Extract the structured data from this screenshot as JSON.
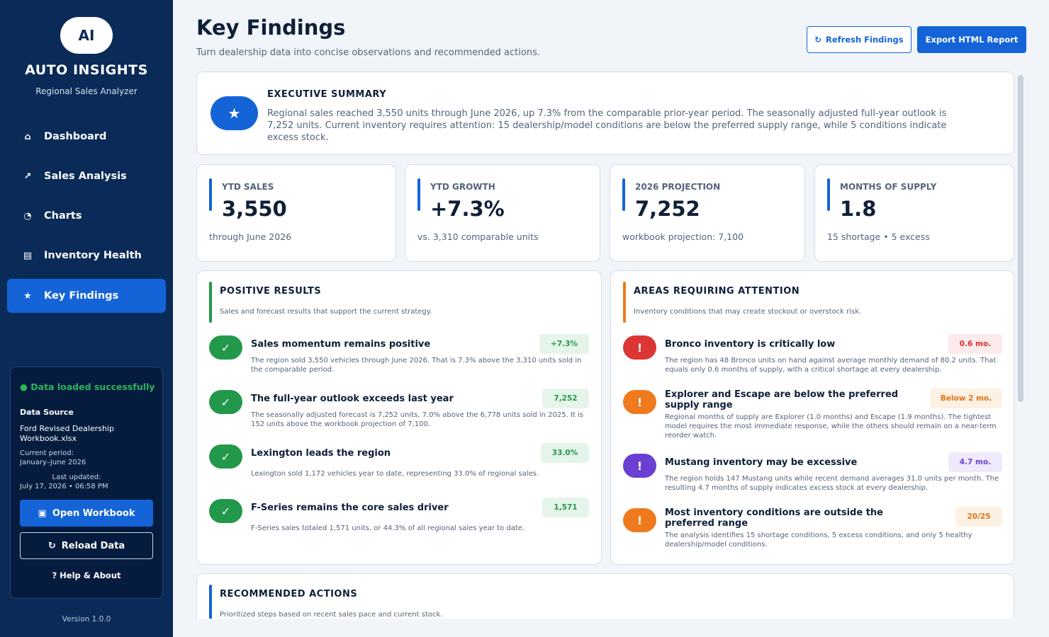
{
  "sidebar": {
    "logo": "AI",
    "title": "AUTO INSIGHTS",
    "subtitle": "Regional Sales Analyzer",
    "nav": [
      {
        "label": "Dashboard",
        "icon": "⌂",
        "icon_name": "home-icon"
      },
      {
        "label": "Sales Analysis",
        "icon": "↗",
        "icon_name": "trend-icon"
      },
      {
        "label": "Charts",
        "icon": "◔",
        "icon_name": "pie-chart-icon"
      },
      {
        "label": "Inventory Health",
        "icon": "▤",
        "icon_name": "inventory-icon"
      },
      {
        "label": "Key Findings",
        "icon": "★",
        "icon_name": "star-icon",
        "active": true
      }
    ],
    "status": "● Data loaded successfully",
    "data_source_label": "Data Source",
    "file_name": "Ford Revised Dealership Workbook.xlsx",
    "period_label": "Current period:",
    "period": "January–June 2026",
    "updated_label": "Last updated:",
    "updated": "July 17, 2026 • 06:58 PM",
    "open_button": "Open Workbook",
    "open_icon": "▣",
    "reload_button": "Reload Data",
    "reload_icon": "↻",
    "help_button": "? Help & About",
    "version": "Version 1.0.0"
  },
  "header": {
    "title": "Key Findings",
    "subtitle": "Turn dealership data into concise observations and recommended actions.",
    "refresh_icon": "↻",
    "refresh_button": "Refresh Findings",
    "export_button": "Export HTML Report"
  },
  "executive": {
    "icon": "★",
    "title": "EXECUTIVE SUMMARY",
    "text": "Regional sales reached 3,550 units through June 2026, up 7.3% from the comparable prior-year period. The seasonally adjusted full-year outlook is 7,252 units. Current inventory requires attention: 15 dealership/model conditions are below the preferred supply range, while 5 conditions indicate excess stock."
  },
  "kpis": [
    {
      "label": "YTD SALES",
      "value": "3,550",
      "note": "through June 2026"
    },
    {
      "label": "YTD GROWTH",
      "value": "+7.3%",
      "note": "vs. 3,310 comparable units"
    },
    {
      "label": "2026 PROJECTION",
      "value": "7,252",
      "note": "workbook projection: 7,100"
    },
    {
      "label": "MONTHS OF SUPPLY",
      "value": "1.8",
      "note": "15 shortage • 5 excess"
    }
  ],
  "positive": {
    "title": "POSITIVE RESULTS",
    "subtitle": "Sales and forecast results that support the current strategy.",
    "accent": "#22994a",
    "items": [
      {
        "icon": "✓",
        "title": "Sales momentum remains positive",
        "badge": "+7.3%",
        "desc": "The region sold 3,550 vehicles through June 2026. That is 7.3% above the 3,310 units sold in the comparable period."
      },
      {
        "icon": "✓",
        "title": "The full-year outlook exceeds last year",
        "badge": "7,252",
        "desc": "The seasonally adjusted forecast is 7,252 units, 7.0% above the 6,778 units sold in 2025. It is 152 units above the workbook projection of 7,100."
      },
      {
        "icon": "✓",
        "title": "Lexington leads the region",
        "badge": "33.0%",
        "desc": "Lexington sold 1,172 vehicles year to date, representing 33.0% of regional sales."
      },
      {
        "icon": "✓",
        "title": "F-Series remains the core sales driver",
        "badge": "1,571",
        "desc": "F-Series sales totaled 1,571 units, or 44.3% of all regional sales year to date."
      }
    ]
  },
  "attention": {
    "title": "AREAS REQUIRING ATTENTION",
    "subtitle": "Inventory conditions that may create stockout or overstock risk.",
    "accent": "#ee7a1d",
    "items": [
      {
        "icon": "!",
        "color": "#dc3535",
        "badge_bg": "#fdeaea",
        "badge_fg": "#d43333",
        "title": "Bronco inventory is critically low",
        "badge": "0.6 mo.",
        "desc": "The region has 48 Bronco units on hand against average monthly demand of 80.2 units. That equals only 0.6 months of supply, with a critical shortage at every dealership."
      },
      {
        "icon": "!",
        "color": "#ee7a1d",
        "badge_bg": "#fdf1e4",
        "badge_fg": "#e07415",
        "title": "Explorer and Escape are below the preferred supply range",
        "badge": "Below 2 mo.",
        "desc": "Regional months of supply are Explorer (1.0 months) and Escape (1.9 months). The tightest model requires the most immediate response, while the others should remain on a near-term reorder watch."
      },
      {
        "icon": "!",
        "color": "#6a3fd1",
        "badge_bg": "#efeafb",
        "badge_fg": "#6a3fd1",
        "title": "Mustang inventory may be excessive",
        "badge": "4.7 mo.",
        "desc": "The region holds 147 Mustang units while recent demand averages 31.0 units per month. The resulting 4.7 months of supply indicates excess stock at every dealership."
      },
      {
        "icon": "!",
        "color": "#ee7a1d",
        "badge_bg": "#fdf1e4",
        "badge_fg": "#e07415",
        "title": "Most inventory conditions are outside the preferred range",
        "badge": "20/25",
        "desc": "The analysis identifies 15 shortage conditions, 5 excess conditions, and only 5 healthy dealership/model conditions."
      }
    ]
  },
  "recommended": {
    "title": "RECOMMENDED ACTIONS",
    "subtitle": "Prioritized steps based on recent sales pace and current stock."
  },
  "colors": {
    "primary": "#1464d8",
    "sidebar": "#0a2a57",
    "positive": "#22994a",
    "warning": "#ee7a1d"
  }
}
